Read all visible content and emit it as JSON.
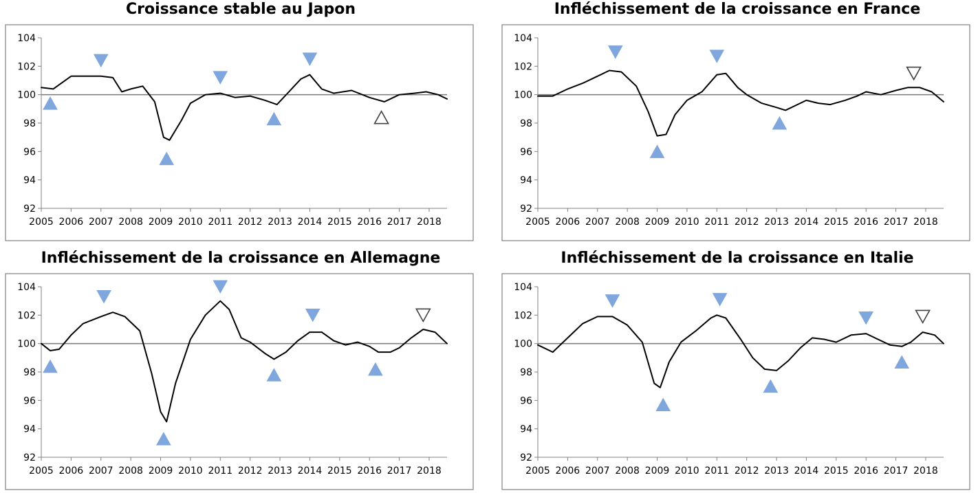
{
  "chart_data": [
    {
      "type": "line",
      "title": "Croissance stable au Japon",
      "x_ticks": [
        "2005",
        "2006",
        "2007",
        "2008",
        "2009",
        "2010",
        "2011",
        "2012",
        "2013",
        "2014",
        "2015",
        "2016",
        "2017",
        "2018"
      ],
      "y_ticks": [
        "92",
        "94",
        "96",
        "98",
        "100",
        "102",
        "104"
      ],
      "ylim": [
        92,
        104
      ],
      "xlim": [
        2005,
        2018.6
      ],
      "reference_line": 100,
      "grid": false,
      "series": [
        {
          "x": [
            2005,
            2005.4,
            2006,
            2006.5,
            2007,
            2007.4,
            2007.7,
            2008,
            2008.4,
            2008.8,
            2009.1,
            2009.3,
            2009.7,
            2010,
            2010.5,
            2011,
            2011.5,
            2012,
            2012.5,
            2012.9,
            2013.3,
            2013.7,
            2014,
            2014.4,
            2014.8,
            2015.4,
            2016,
            2016.5,
            2017,
            2017.5,
            2017.9,
            2018.3,
            2018.6
          ],
          "y": [
            100.5,
            100.4,
            101.3,
            101.3,
            101.3,
            101.2,
            100.2,
            100.4,
            100.6,
            99.5,
            97,
            96.8,
            98.2,
            99.4,
            100,
            100.1,
            99.8,
            99.9,
            99.6,
            99.3,
            100.2,
            101.1,
            101.4,
            100.4,
            100.1,
            100.3,
            99.8,
            99.5,
            100,
            100.1,
            100.2,
            100,
            99.7
          ]
        }
      ],
      "markers": [
        {
          "kind": "filled-up",
          "x": 2005.3,
          "y": 99.4
        },
        {
          "kind": "filled-down",
          "x": 2007,
          "y": 102.4
        },
        {
          "kind": "filled-up",
          "x": 2009.2,
          "y": 95.5
        },
        {
          "kind": "filled-down",
          "x": 2011,
          "y": 101.2
        },
        {
          "kind": "filled-up",
          "x": 2012.8,
          "y": 98.3
        },
        {
          "kind": "filled-down",
          "x": 2014,
          "y": 102.5
        },
        {
          "kind": "hollow-up",
          "x": 2016.4,
          "y": 98.4
        }
      ]
    },
    {
      "type": "line",
      "title": "Infléchissement de la croissance en France",
      "x_ticks": [
        "2005",
        "2006",
        "2007",
        "2008",
        "2009",
        "2010",
        "2011",
        "2012",
        "2013",
        "2014",
        "2015",
        "2016",
        "2017",
        "2018"
      ],
      "y_ticks": [
        "92",
        "94",
        "96",
        "98",
        "100",
        "102",
        "104"
      ],
      "ylim": [
        92,
        104
      ],
      "xlim": [
        2005,
        2018.6
      ],
      "reference_line": 100,
      "grid": false,
      "series": [
        {
          "x": [
            2005,
            2005.5,
            2006,
            2006.5,
            2007,
            2007.4,
            2007.8,
            2008.3,
            2008.7,
            2009,
            2009.3,
            2009.6,
            2010,
            2010.5,
            2011,
            2011.3,
            2011.7,
            2012,
            2012.5,
            2013,
            2013.3,
            2013.7,
            2014,
            2014.4,
            2014.8,
            2015.3,
            2015.7,
            2016,
            2016.5,
            2017,
            2017.4,
            2017.8,
            2018.2,
            2018.6
          ],
          "y": [
            99.9,
            99.9,
            100.4,
            100.8,
            101.3,
            101.7,
            101.6,
            100.6,
            98.8,
            97.1,
            97.2,
            98.6,
            99.6,
            100.2,
            101.4,
            101.5,
            100.5,
            100,
            99.4,
            99.1,
            98.9,
            99.3,
            99.6,
            99.4,
            99.3,
            99.6,
            99.9,
            100.2,
            100,
            100.3,
            100.5,
            100.5,
            100.2,
            99.5
          ]
        }
      ],
      "markers": [
        {
          "kind": "filled-down",
          "x": 2007.6,
          "y": 103
        },
        {
          "kind": "filled-up",
          "x": 2009,
          "y": 96
        },
        {
          "kind": "filled-down",
          "x": 2011,
          "y": 102.7
        },
        {
          "kind": "filled-up",
          "x": 2013.1,
          "y": 98
        },
        {
          "kind": "hollow-down",
          "x": 2017.6,
          "y": 101.5
        }
      ]
    },
    {
      "type": "line",
      "title": "Infléchissement de la croissance en Allemagne",
      "x_ticks": [
        "2005",
        "2006",
        "2007",
        "2008",
        "2009",
        "2010",
        "2011",
        "2012",
        "2013",
        "2014",
        "2015",
        "2016",
        "2017",
        "2018"
      ],
      "y_ticks": [
        "92",
        "94",
        "96",
        "98",
        "100",
        "102",
        "104"
      ],
      "ylim": [
        92,
        104
      ],
      "xlim": [
        2005,
        2018.6
      ],
      "reference_line": 100,
      "grid": false,
      "series": [
        {
          "x": [
            2005,
            2005.3,
            2005.6,
            2006,
            2006.4,
            2007,
            2007.4,
            2007.8,
            2008.3,
            2008.7,
            2009,
            2009.2,
            2009.5,
            2010,
            2010.5,
            2011,
            2011.3,
            2011.7,
            2012,
            2012.5,
            2012.8,
            2013.2,
            2013.6,
            2014,
            2014.4,
            2014.8,
            2015.2,
            2015.6,
            2016,
            2016.3,
            2016.7,
            2017,
            2017.4,
            2017.8,
            2018.2,
            2018.6
          ],
          "y": [
            100,
            99.5,
            99.6,
            100.6,
            101.4,
            101.9,
            102.2,
            101.9,
            100.9,
            97.9,
            95.2,
            94.5,
            97.2,
            100.3,
            102,
            103,
            102.4,
            100.4,
            100.1,
            99.3,
            98.9,
            99.4,
            100.2,
            100.8,
            100.8,
            100.2,
            99.9,
            100.1,
            99.8,
            99.4,
            99.4,
            99.7,
            100.4,
            101,
            100.8,
            100
          ]
        }
      ],
      "markers": [
        {
          "kind": "filled-up",
          "x": 2005.3,
          "y": 98.4
        },
        {
          "kind": "filled-down",
          "x": 2007.1,
          "y": 103.3
        },
        {
          "kind": "filled-up",
          "x": 2009.1,
          "y": 93.3
        },
        {
          "kind": "filled-down",
          "x": 2011,
          "y": 104
        },
        {
          "kind": "filled-up",
          "x": 2012.8,
          "y": 97.8
        },
        {
          "kind": "filled-down",
          "x": 2014.1,
          "y": 102
        },
        {
          "kind": "filled-up",
          "x": 2016.2,
          "y": 98.2
        },
        {
          "kind": "hollow-down",
          "x": 2017.8,
          "y": 102
        }
      ]
    },
    {
      "type": "line",
      "title": "Infléchissement de la croissance en Italie",
      "x_ticks": [
        "2005",
        "2006",
        "2007",
        "2008",
        "2009",
        "2010",
        "2011",
        "2012",
        "2013",
        "2014",
        "2015",
        "2016",
        "2017",
        "2018"
      ],
      "y_ticks": [
        "92",
        "94",
        "96",
        "98",
        "100",
        "102",
        "104"
      ],
      "ylim": [
        92,
        104
      ],
      "xlim": [
        2005,
        2018.6
      ],
      "reference_line": 100,
      "grid": false,
      "series": [
        {
          "x": [
            2005,
            2005.5,
            2006,
            2006.5,
            2007,
            2007.5,
            2008,
            2008.5,
            2008.9,
            2009.1,
            2009.4,
            2009.8,
            2010.3,
            2010.8,
            2011,
            2011.3,
            2011.8,
            2012.2,
            2012.6,
            2013,
            2013.4,
            2013.8,
            2014.2,
            2014.6,
            2015,
            2015.5,
            2016,
            2016.4,
            2016.8,
            2017.2,
            2017.5,
            2017.9,
            2018.3,
            2018.6
          ],
          "y": [
            99.9,
            99.4,
            100.4,
            101.4,
            101.9,
            101.9,
            101.3,
            100.1,
            97.2,
            96.9,
            98.7,
            100.1,
            100.9,
            101.8,
            102,
            101.8,
            100.3,
            99,
            98.2,
            98.1,
            98.8,
            99.7,
            100.4,
            100.3,
            100.1,
            100.6,
            100.7,
            100.3,
            99.9,
            99.8,
            100.1,
            100.8,
            100.6,
            100
          ]
        }
      ],
      "markers": [
        {
          "kind": "filled-down",
          "x": 2007.5,
          "y": 103
        },
        {
          "kind": "filled-up",
          "x": 2009.2,
          "y": 95.7
        },
        {
          "kind": "filled-down",
          "x": 2011.1,
          "y": 103.1
        },
        {
          "kind": "filled-up",
          "x": 2012.8,
          "y": 97
        },
        {
          "kind": "filled-down",
          "x": 2016,
          "y": 101.8
        },
        {
          "kind": "filled-up",
          "x": 2017.2,
          "y": 98.7
        },
        {
          "kind": "hollow-down",
          "x": 2017.9,
          "y": 101.9
        }
      ]
    }
  ],
  "colors": {
    "line": "#000000",
    "reference_line": "#808080",
    "axis": "#808080",
    "frame": "#808080",
    "marker_fill": "#7FA7DE",
    "marker_hollow_stroke": "#404040"
  }
}
